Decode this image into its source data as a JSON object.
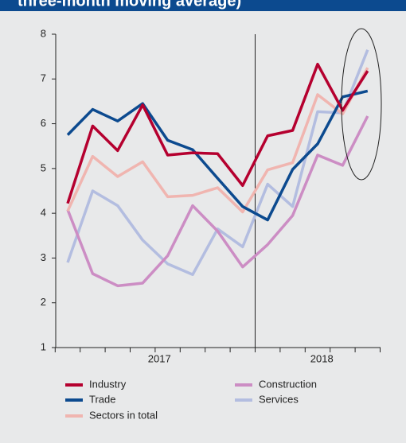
{
  "chart_data": {
    "type": "line",
    "title": "three-month moving average)",
    "categories": [
      null,
      null,
      null,
      null,
      null,
      null,
      null,
      null,
      null,
      null,
      null,
      null,
      null
    ],
    "year_labels": [
      "2017",
      "2018"
    ],
    "ylim": [
      1,
      8
    ],
    "yticks": [
      1,
      2,
      3,
      4,
      5,
      6,
      7,
      8
    ],
    "series": [
      {
        "name": "Industry",
        "color": "#b5002f",
        "values": [
          4.22,
          5.95,
          5.4,
          6.42,
          5.3,
          5.35,
          5.33,
          4.62,
          5.73,
          5.85,
          7.33,
          6.3,
          7.18
        ]
      },
      {
        "name": "Trade",
        "color": "#0c4a8f",
        "values": [
          5.75,
          6.32,
          6.06,
          6.45,
          5.63,
          5.42,
          4.78,
          4.15,
          3.85,
          4.98,
          5.55,
          6.6,
          6.73
        ]
      },
      {
        "name": "Sectors in total",
        "color": "#f0b5b0",
        "values": [
          4.05,
          5.27,
          4.82,
          5.15,
          4.37,
          4.4,
          4.57,
          4.03,
          4.97,
          5.13,
          6.65,
          6.22,
          7.25
        ]
      },
      {
        "name": "Construction",
        "color": "#cc8dc4",
        "values": [
          4.08,
          2.65,
          2.38,
          2.44,
          3.05,
          4.17,
          3.6,
          2.8,
          3.3,
          3.95,
          5.3,
          5.07,
          6.17
        ]
      },
      {
        "name": "Services",
        "color": "#b3bde0",
        "values": [
          2.9,
          4.5,
          4.17,
          3.4,
          2.87,
          2.63,
          3.65,
          3.25,
          4.65,
          4.15,
          6.27,
          6.24,
          7.65
        ]
      }
    ]
  }
}
